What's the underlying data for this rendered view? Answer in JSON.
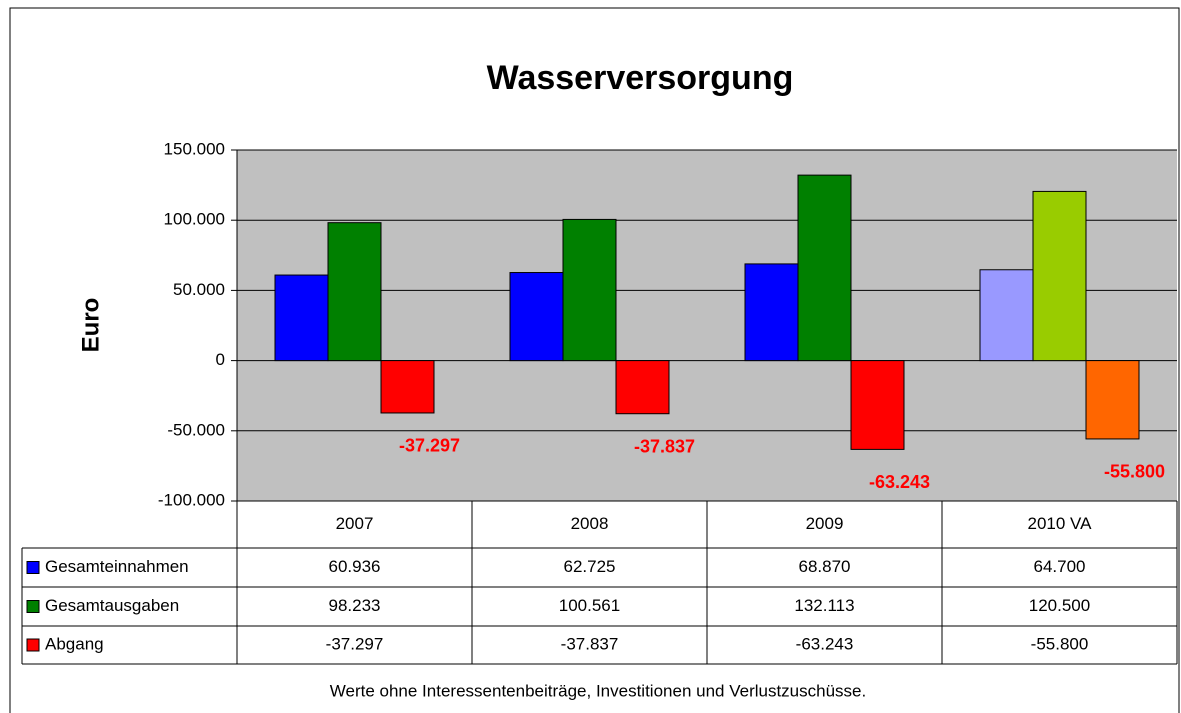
{
  "chart_data": {
    "type": "bar",
    "title": "Wasserversorgung",
    "y_label": "Euro",
    "note": "Werte ohne Interessentenbeiträge, Investitionen und Verlustzuschüsse.",
    "categories": [
      "2007",
      "2008",
      "2009",
      "2010 VA"
    ],
    "series": [
      {
        "name": "Gesamteinnahmen",
        "color": "#0000ff",
        "colors": [
          "#0000ff",
          "#0000ff",
          "#0000ff",
          "#9999ff"
        ],
        "values": [
          60936,
          62725,
          68870,
          64700
        ],
        "value_labels": [
          "60.936",
          "62.725",
          "68.870",
          "64.700"
        ]
      },
      {
        "name": "Gesamtausgaben",
        "color": "#008000",
        "colors": [
          "#008000",
          "#008000",
          "#008000",
          "#99cc00"
        ],
        "values": [
          98233,
          100561,
          132113,
          120500
        ],
        "value_labels": [
          "98.233",
          "100.561",
          "132.113",
          "120.500"
        ]
      },
      {
        "name": "Abgang",
        "color": "#ff0000",
        "colors": [
          "#ff0000",
          "#ff0000",
          "#ff0000",
          "#ff6600"
        ],
        "values": [
          -37297,
          -37837,
          -63243,
          -55800
        ],
        "value_labels": [
          "-37.297",
          "-37.837",
          "-63.243",
          "-55.800"
        ]
      }
    ],
    "ylim": [
      -100000,
      150000
    ],
    "yticks": [
      {
        "value": -100000,
        "label": "-100.000"
      },
      {
        "value": -50000,
        "label": "-50.000"
      },
      0,
      {
        "value": 50000,
        "label": "50.000"
      },
      {
        "value": 100000,
        "label": "100.000"
      },
      {
        "value": 150000,
        "label": "150.000"
      }
    ],
    "grid": true,
    "plot_background": "#c0c0c0",
    "data_labels_series": 2
  }
}
